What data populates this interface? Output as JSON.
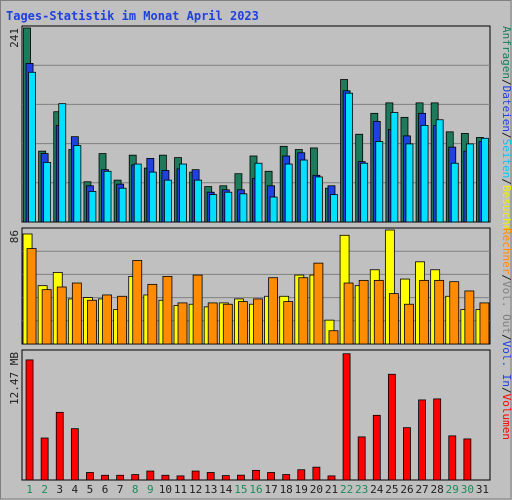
{
  "chart_data": {
    "type": "bar",
    "title": "Tages-Statistik im Monat April 2023",
    "categories": [
      "1",
      "2",
      "3",
      "4",
      "5",
      "6",
      "7",
      "8",
      "9",
      "10",
      "11",
      "12",
      "13",
      "14",
      "15",
      "16",
      "17",
      "18",
      "19",
      "20",
      "21",
      "22",
      "23",
      "24",
      "25",
      "26",
      "27",
      "28",
      "29",
      "30",
      "31"
    ],
    "weekend_days": [
      "1",
      "2",
      "8",
      "9",
      "15",
      "16",
      "22",
      "23",
      "29",
      "30"
    ],
    "panels": [
      {
        "name": "top",
        "max_label": "241",
        "ylim": [
          0,
          241
        ],
        "grid": true,
        "series": [
          {
            "name": "Anfragen",
            "color": "#1e7a5a",
            "values": [
              241,
              88,
              137,
              90,
              50,
              85,
              52,
              83,
              67,
              83,
              80,
              62,
              44,
              45,
              60,
              82,
              63,
              94,
              90,
              92,
              42,
              177,
              109,
              135,
              148,
              130,
              148,
              148,
              112,
              110,
              105
            ]
          },
          {
            "name": "Seiten",
            "color": "#2040e0",
            "values": [
              197,
              85,
              120,
              106,
              45,
              65,
              47,
              71,
              79,
              64,
              66,
              65,
              37,
              40,
              40,
              54,
              45,
              82,
              86,
              58,
              45,
              163,
              75,
              125,
              115,
              107,
              135,
              120,
              93,
              88,
              100
            ]
          },
          {
            "name": "Dateien",
            "color": "#00e0ff",
            "values": [
              186,
              74,
              147,
              95,
              38,
              63,
              42,
              72,
              62,
              52,
              72,
              52,
              34,
              37,
              35,
              73,
              31,
              72,
              77,
              56,
              34,
              160,
              73,
              100,
              136,
              97,
              120,
              127,
              73,
              97,
              104
            ]
          }
        ],
        "axis_label_parts": [
          {
            "text": "Anfragen",
            "color": "#1e7a5a"
          },
          {
            "text": "/",
            "color": "#202020"
          },
          {
            "text": "Dateien",
            "color": "#2040e0"
          },
          {
            "text": "/",
            "color": "#202020"
          },
          {
            "text": "Seiten",
            "color": "#00c8f0"
          },
          {
            "text": "/",
            "color": "#202020"
          },
          {
            "text": "Besuche",
            "color": "#f0f000"
          }
        ]
      },
      {
        "name": "middle",
        "max_label": "86",
        "ylim": [
          0,
          86
        ],
        "grid": true,
        "series": [
          {
            "name": "Besuche",
            "color": "#ffff00",
            "values": [
              83,
              44,
              54,
              34,
              35,
              34,
              26,
              51,
              37,
              33,
              29,
              30,
              28,
              31,
              34,
              30,
              36,
              36,
              52,
              52,
              18,
              82,
              44,
              56,
              86,
              49,
              62,
              56,
              36,
              26,
              26
            ]
          },
          {
            "name": "Rechner",
            "color": "#ff8c00",
            "values": [
              72,
              41,
              43,
              46,
              33,
              37,
              36,
              63,
              45,
              51,
              31,
              52,
              31,
              30,
              32,
              34,
              50,
              32,
              50,
              61,
              10,
              46,
              48,
              48,
              38,
              30,
              48,
              48,
              47,
              40,
              31
            ]
          }
        ],
        "axis_label_parts": [
          {
            "text": "Rechner",
            "color": "#ff8c00"
          },
          {
            "text": "/",
            "color": "#202020"
          },
          {
            "text": "Vol. Out",
            "color": "#808080"
          },
          {
            "text": "/",
            "color": "#202020"
          },
          {
            "text": "Vol. In",
            "color": "#2040e0"
          },
          {
            "text": "/",
            "color": "#202020"
          },
          {
            "text": "Volumen",
            "color": "#ff0000"
          }
        ]
      },
      {
        "name": "bottom",
        "max_label": "12.47 MB",
        "ylim": [
          0,
          12.47
        ],
        "grid": false,
        "series": [
          {
            "name": "Volumen",
            "color": "#ff0000",
            "values": [
              11.7,
              4.09,
              6.59,
              5.0,
              0.73,
              0.46,
              0.46,
              0.53,
              0.87,
              0.46,
              0.4,
              0.87,
              0.73,
              0.43,
              0.47,
              0.94,
              0.73,
              0.53,
              1.0,
              1.25,
              0.4,
              12.3,
              4.2,
              6.3,
              10.3,
              5.1,
              7.8,
              7.9,
              4.3,
              4.0,
              0.0
            ]
          }
        ]
      }
    ]
  }
}
